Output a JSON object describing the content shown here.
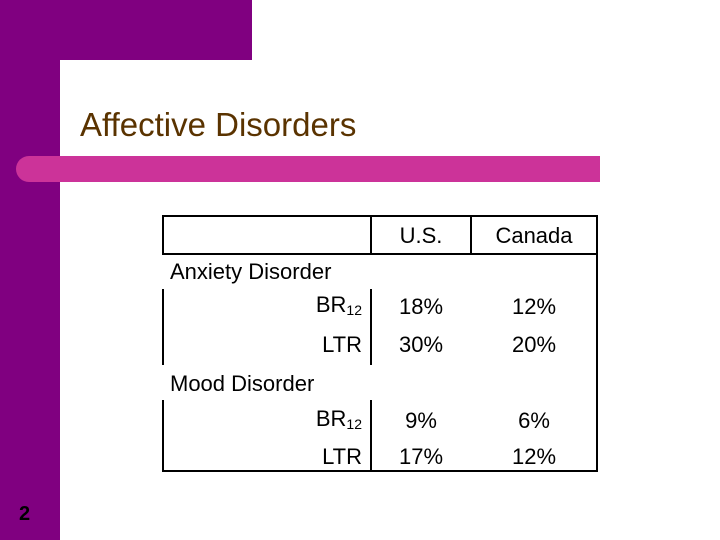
{
  "slide": {
    "title": "Affective Disorders",
    "page_number": "2"
  },
  "table": {
    "columns": [
      "U.S.",
      "Canada"
    ],
    "groups": [
      {
        "label": "Anxiety Disorder",
        "rows": [
          {
            "label": "BR",
            "sub": "12",
            "values": [
              "18%",
              "12%"
            ]
          },
          {
            "label": "LTR",
            "sub": "",
            "values": [
              "30%",
              "20%"
            ]
          }
        ]
      },
      {
        "label": "Mood Disorder",
        "rows": [
          {
            "label": "BR",
            "sub": "12",
            "values": [
              "9%",
              "6%"
            ]
          },
          {
            "label": "LTR",
            "sub": "",
            "values": [
              "17%",
              "12%"
            ]
          }
        ]
      }
    ]
  },
  "colors": {
    "sidebar": "#800080",
    "accent_bar": "#cc3399",
    "title": "#5a3300"
  }
}
